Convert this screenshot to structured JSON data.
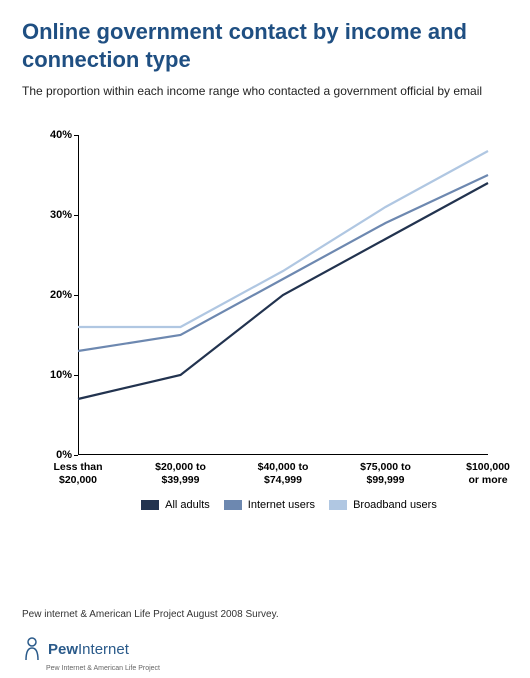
{
  "title": "Online government contact by income and connection type",
  "subtitle": "The proportion within each income range who contacted a government official by email",
  "title_color": "#1f4f82",
  "chart": {
    "type": "line",
    "categories": [
      "Less than\n$20,000",
      "$20,000 to\n$39,999",
      "$40,000 to\n$74,999",
      "$75,000 to\n$99,999",
      "$100,000\nor more"
    ],
    "ylim": [
      0,
      40
    ],
    "ytick_step": 10,
    "ytick_suffix": "%",
    "background_color": "#ffffff",
    "line_width": 2.2,
    "series": [
      {
        "label": "All adults",
        "color": "#22334f",
        "values": [
          7,
          10,
          20,
          27,
          34
        ]
      },
      {
        "label": "Internet users",
        "color": "#6d88b0",
        "values": [
          13,
          15,
          22,
          29,
          35
        ]
      },
      {
        "label": "Broadband users",
        "color": "#b0c7e2",
        "values": [
          16,
          16,
          23,
          31,
          38
        ]
      }
    ]
  },
  "source": "Pew internet & American Life Project August 2008 Survey.",
  "brand": {
    "name": "PewInternet",
    "sub": "Pew Internet & American Life Project",
    "color": "#2a5a8a"
  }
}
